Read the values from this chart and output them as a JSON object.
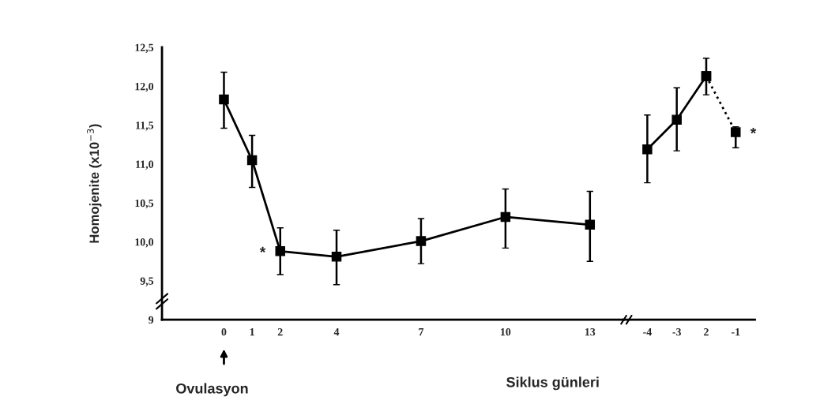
{
  "chart_data": [
    {
      "type": "line",
      "ylabel": "Homojenite (x10$^{−3}$)",
      "xlim": [
        -2.2,
        14.2
      ],
      "xticks": [
        0,
        1,
        2,
        4,
        7,
        10,
        13
      ],
      "ylim": [
        9,
        12.5
      ],
      "yticks": [
        {
          "value": 9,
          "label": "9"
        },
        {
          "value": 9.5,
          "label": "9,5"
        },
        {
          "value": 10,
          "label": "10,0"
        },
        {
          "value": 10.5,
          "label": "10,5"
        },
        {
          "value": 11,
          "label": "11,0"
        },
        {
          "value": 11.5,
          "label": "11,5"
        },
        {
          "value": 12,
          "label": "12,0"
        },
        {
          "value": 12.5,
          "label": "12,5"
        }
      ],
      "marker": "square",
      "series": [
        {
          "color": "#000000",
          "line_style": "solid",
          "x": [
            0,
            1,
            2,
            4,
            7,
            10,
            13
          ],
          "values": [
            11.83,
            11.05,
            9.88,
            9.81,
            10.01,
            10.32,
            10.22
          ],
          "errors": [
            [
              11.46,
              12.18
            ],
            [
              10.7,
              11.37
            ],
            [
              9.58,
              10.18
            ],
            [
              9.45,
              10.15
            ],
            [
              9.72,
              10.3
            ],
            [
              9.92,
              10.68
            ],
            [
              9.75,
              10.65
            ]
          ]
        }
      ],
      "annotations": [
        {
          "text": "*",
          "x": 2,
          "y": 9.88
        },
        "Ovulasyon"
      ]
    },
    {
      "type": "line",
      "xlabel": "Siklus günleri",
      "categories": [
        "-4",
        "-3",
        "2",
        "-1"
      ],
      "ylim": [
        9,
        12.5
      ],
      "tick_labels": "x",
      "marker": "square",
      "series": [
        {
          "color": "#000000",
          "line_style": "solid",
          "values": [
            11.19,
            11.57,
            12.13,
            null
          ],
          "errors": [
            [
              10.76,
              11.63
            ],
            [
              11.17,
              11.98
            ],
            [
              11.89,
              12.36
            ],
            null
          ]
        },
        {
          "color": "#000000",
          "line_style": "dotted",
          "values": [
            null,
            null,
            12.13,
            11.41
          ],
          "errors": [
            null,
            null,
            null,
            [
              11.21,
              11.48
            ]
          ]
        }
      ],
      "annotations": [
        {
          "text": "*",
          "x": "-1",
          "y": 11.41
        }
      ]
    }
  ]
}
